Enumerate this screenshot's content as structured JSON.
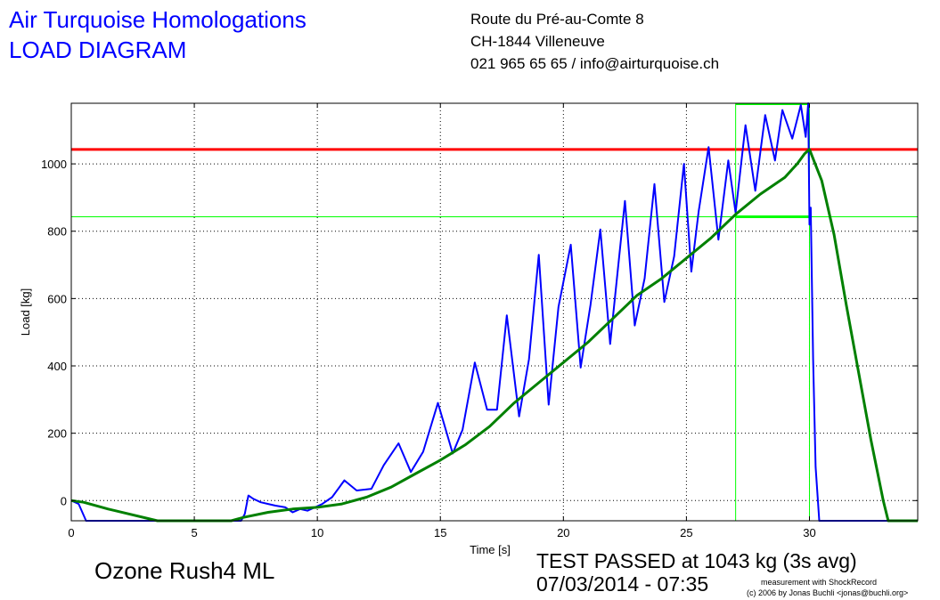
{
  "header": {
    "company": "Air Turquoise Homologations",
    "doc_title": "LOAD DIAGRAM",
    "address_line1": "Route du Pré-au-Comte 8",
    "address_line2": "CH-1844 Villeneuve",
    "contact": "021 965 65 65 / info@airturquoise.ch"
  },
  "footer": {
    "model": "Ozone Rush4 ML",
    "result": "TEST PASSED at 1043 kg (3s avg)",
    "datetime": "07/03/2014 - 07:35",
    "credit_line1": "measurement with ShockRecord",
    "credit_line2": "(c) 2006 by Jonas Buchli <jonas@buchli.org>"
  },
  "chart_data": {
    "type": "line",
    "xlabel": "Time [s]",
    "ylabel": "Load [kg]",
    "xlim": [
      0,
      34.4
    ],
    "ylim": [
      -60,
      1180
    ],
    "xticks": [
      0,
      5,
      10,
      15,
      20,
      25,
      30
    ],
    "yticks": [
      0,
      200,
      400,
      600,
      800,
      1000
    ],
    "grid": true,
    "reference_lines": [
      {
        "orientation": "horizontal",
        "y": 1043,
        "color": "#ff0000"
      },
      {
        "orientation": "horizontal",
        "y": 843,
        "color": "#00ff00"
      },
      {
        "orientation": "vertical",
        "x": 27.0,
        "color": "#00ff00"
      },
      {
        "orientation": "vertical",
        "x": 30.0,
        "color": "#00ff00"
      }
    ],
    "hold_segment": {
      "x": [
        27.0,
        30.0
      ],
      "y": 843,
      "color": "#00ff00"
    },
    "series": [
      {
        "color": "#0000ff",
        "x": [
          0,
          0.3,
          0.6,
          1.5,
          3.5,
          5.5,
          6.5,
          6.9,
          7.05,
          7.2,
          7.4,
          7.7,
          8.0,
          8.3,
          8.7,
          9.0,
          9.3,
          9.6,
          9.9,
          10.2,
          10.6,
          11.1,
          11.6,
          12.2,
          12.7,
          13.3,
          13.8,
          14.3,
          14.9,
          15.5,
          15.9,
          16.4,
          16.9,
          17.3,
          17.7,
          18.2,
          18.6,
          19.0,
          19.4,
          19.8,
          20.3,
          20.7,
          21.1,
          21.5,
          21.9,
          22.5,
          22.9,
          23.3,
          23.7,
          24.1,
          24.5,
          24.9,
          25.2,
          25.5,
          25.9,
          26.3,
          26.7,
          27.0,
          27.4,
          27.8,
          28.2,
          28.6,
          28.9,
          29.3,
          29.65,
          29.85,
          29.95,
          30.0,
          30.05,
          30.15,
          30.25,
          30.4,
          30.6,
          31.5,
          32.5,
          33.5,
          34.4
        ],
        "y": [
          0,
          -10,
          -60,
          -60,
          -60,
          -60,
          -60,
          -60,
          -40,
          15,
          5,
          -5,
          -10,
          -15,
          -20,
          -35,
          -25,
          -30,
          -20,
          -10,
          10,
          60,
          30,
          35,
          105,
          170,
          85,
          145,
          290,
          140,
          210,
          410,
          270,
          270,
          550,
          250,
          420,
          730,
          285,
          575,
          760,
          395,
          580,
          805,
          465,
          890,
          520,
          660,
          940,
          590,
          725,
          1000,
          680,
          860,
          1050,
          775,
          1010,
          855,
          1115,
          920,
          1145,
          1010,
          1160,
          1075,
          1175,
          1080,
          1180,
          820,
          870,
          420,
          100,
          -60,
          -60,
          -60,
          -60,
          -60,
          -60
        ]
      },
      {
        "color": "#008000",
        "x": [
          0,
          0.5,
          1.5,
          3.5,
          5.0,
          6.5,
          7.0,
          8.0,
          9.0,
          10.0,
          11.0,
          12.0,
          13.0,
          14.0,
          15.0,
          16.0,
          17.0,
          18.0,
          19.0,
          20.0,
          21.0,
          22.0,
          23.0,
          24.0,
          25.0,
          26.0,
          27.0,
          28.0,
          29.0,
          29.5,
          29.8,
          30.0,
          30.5,
          31.0,
          31.5,
          32.0,
          32.5,
          33.0,
          33.2,
          34.4
        ],
        "y": [
          0,
          -5,
          -25,
          -60,
          -60,
          -60,
          -50,
          -35,
          -25,
          -20,
          -10,
          10,
          40,
          80,
          120,
          165,
          220,
          290,
          350,
          410,
          470,
          540,
          610,
          660,
          720,
          780,
          850,
          910,
          960,
          1000,
          1030,
          1043,
          950,
          790,
          580,
          380,
          180,
          0,
          -60,
          -60
        ]
      }
    ]
  }
}
